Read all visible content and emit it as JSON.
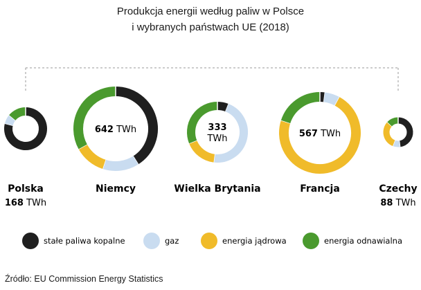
{
  "title_line1": "Produkcja energii według paliw w Polsce",
  "title_line2": "i wybranych państwach UE (2018)",
  "source": "Źródło: EU Commission Energy Statistics",
  "chart_data": {
    "type": "donut",
    "unit": "TWh",
    "categories": [
      "stałe paliwa kopalne",
      "gaz",
      "energia jądrowa",
      "energia odnawialna"
    ],
    "colors": [
      "#1f1f1f",
      "#c9dcf0",
      "#f0bb2a",
      "#4a9a2e"
    ],
    "countries": [
      {
        "name": "Polska",
        "total": 168,
        "shares": [
          0.79,
          0.07,
          0.0,
          0.14
        ]
      },
      {
        "name": "Niemcy",
        "total": 642,
        "shares": [
          0.41,
          0.14,
          0.12,
          0.33
        ]
      },
      {
        "name": "Wielka Brytania",
        "total": 333,
        "shares": [
          0.06,
          0.46,
          0.17,
          0.31
        ]
      },
      {
        "name": "Francja",
        "total": 567,
        "shares": [
          0.02,
          0.06,
          0.72,
          0.2
        ]
      },
      {
        "name": "Czechy",
        "total": 88,
        "shares": [
          0.48,
          0.08,
          0.31,
          0.13
        ]
      }
    ],
    "center_labels": [
      null,
      "642",
      "333",
      "567",
      null
    ],
    "legend_position": "bottom"
  }
}
